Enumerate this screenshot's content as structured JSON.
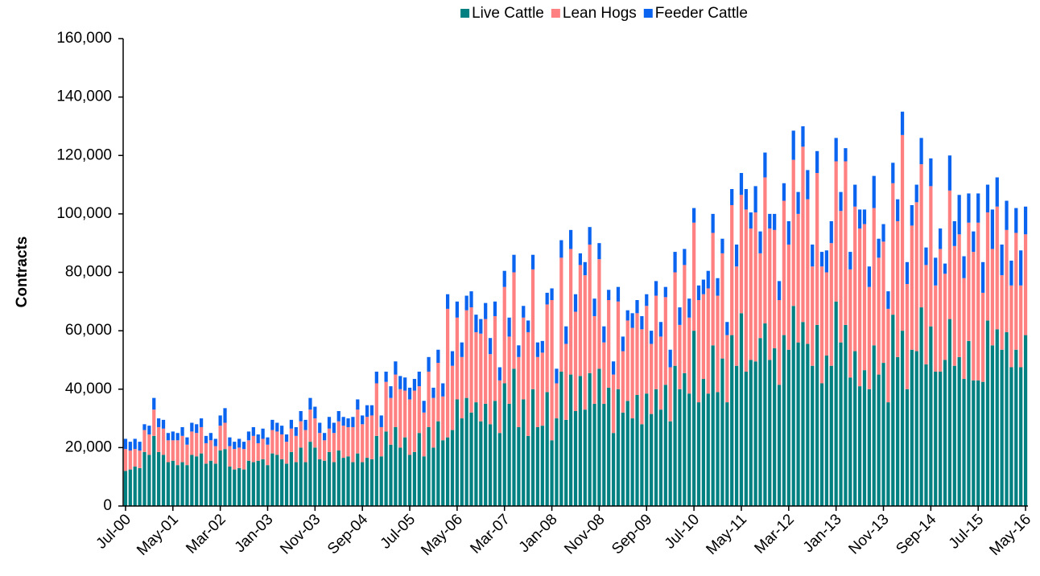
{
  "chart_data": {
    "type": "stacked_bar",
    "y_label": "Contracts",
    "categories": [
      "Jul-00",
      null,
      null,
      null,
      null,
      null,
      null,
      null,
      null,
      null,
      "May-01",
      null,
      null,
      null,
      null,
      null,
      null,
      null,
      null,
      null,
      "Mar-02",
      null,
      null,
      null,
      null,
      null,
      null,
      null,
      null,
      null,
      "Jan-03",
      null,
      null,
      null,
      null,
      null,
      null,
      null,
      null,
      null,
      "Nov-03",
      null,
      null,
      null,
      null,
      null,
      null,
      null,
      null,
      null,
      "Sep-04",
      null,
      null,
      null,
      null,
      null,
      null,
      null,
      null,
      null,
      "Jul-05",
      null,
      null,
      null,
      null,
      null,
      null,
      null,
      null,
      null,
      "May-06",
      null,
      null,
      null,
      null,
      null,
      null,
      null,
      null,
      null,
      "Mar-07",
      null,
      null,
      null,
      null,
      null,
      null,
      null,
      null,
      null,
      "Jan-08",
      null,
      null,
      null,
      null,
      null,
      null,
      null,
      null,
      null,
      "Nov-08",
      null,
      null,
      null,
      null,
      null,
      null,
      null,
      null,
      null,
      "Sep-09",
      null,
      null,
      null,
      null,
      null,
      null,
      null,
      null,
      null,
      "Jul-10",
      null,
      null,
      null,
      null,
      null,
      null,
      null,
      null,
      null,
      "May-11",
      null,
      null,
      null,
      null,
      null,
      null,
      null,
      null,
      null,
      "Mar-12",
      null,
      null,
      null,
      null,
      null,
      null,
      null,
      null,
      null,
      "Jan-13",
      null,
      null,
      null,
      null,
      null,
      null,
      null,
      null,
      null,
      "Nov-13",
      null,
      null,
      null,
      null,
      null,
      null,
      null,
      null,
      null,
      "Sep-14",
      null,
      null,
      null,
      null,
      null,
      null,
      null,
      null,
      null,
      "Jul-15",
      null,
      null,
      null,
      null,
      null,
      null,
      null,
      null,
      null,
      "May-16"
    ],
    "series": [
      {
        "name": "Live Cattle",
        "color": "#008080",
        "values": [
          12000,
          12500,
          13500,
          13000,
          18500,
          17500,
          24000,
          18500,
          17500,
          15000,
          15500,
          14000,
          15000,
          14000,
          17500,
          17000,
          18000,
          14500,
          15500,
          14500,
          19000,
          19500,
          13500,
          12500,
          13000,
          12500,
          15500,
          15000,
          15500,
          16000,
          14000,
          18000,
          17500,
          16000,
          14500,
          18500,
          15000,
          20000,
          15000,
          22000,
          20000,
          16000,
          15500,
          18500,
          15000,
          19000,
          16500,
          17000,
          15000,
          18000,
          15000,
          16500,
          16000,
          24000,
          17000,
          25500,
          21000,
          27000,
          20000,
          23500,
          17500,
          18500,
          25000,
          17000,
          27000,
          20000,
          29000,
          22500,
          23500,
          26000,
          36500,
          30000,
          37000,
          32000,
          35500,
          29000,
          35000,
          28000,
          36000,
          25000,
          42000,
          35000,
          47000,
          27000,
          36500,
          24000,
          40000,
          27000,
          27500,
          39000,
          22500,
          30000,
          46000,
          29500,
          45000,
          32500,
          44500,
          33000,
          45500,
          35000,
          47000,
          35000,
          40500,
          25000,
          40000,
          32000,
          36000,
          30000,
          38000,
          28000,
          38500,
          31500,
          40000,
          33000,
          41500,
          29000,
          48000,
          40000,
          45500,
          38500,
          60000,
          35500,
          43500,
          38500,
          55000,
          39000,
          50500,
          35500,
          58500,
          48000,
          66000,
          46000,
          50000,
          49500,
          57500,
          62500,
          50000,
          54000,
          41500,
          58500,
          53500,
          68500,
          56000,
          63000,
          55500,
          48000,
          62000,
          42000,
          51500,
          48000,
          70000,
          56000,
          62000,
          44000,
          53000,
          41000,
          46500,
          40000,
          55000,
          45000,
          49000,
          35500,
          65500,
          51000,
          60000,
          40000,
          53500,
          53000,
          68000,
          48500,
          61500,
          46000,
          46000,
          50000,
          64000,
          48000,
          51000,
          43500,
          56500,
          43000,
          43000,
          42500,
          63500,
          55000,
          60500,
          53500,
          59500,
          47500,
          53500,
          47500,
          58500
        ]
      },
      {
        "name": "Lean Hogs",
        "color": "#ff8080",
        "values": [
          7500,
          6500,
          6000,
          6000,
          7500,
          7000,
          9000,
          8500,
          9000,
          7500,
          7000,
          8500,
          9000,
          7000,
          8000,
          8000,
          9000,
          7000,
          7000,
          6000,
          8500,
          9000,
          7000,
          7000,
          7000,
          7000,
          7000,
          9000,
          6000,
          7000,
          7000,
          8000,
          8000,
          8500,
          7500,
          8000,
          9000,
          9000,
          11000,
          11000,
          10000,
          9000,
          7000,
          8000,
          10000,
          10000,
          11000,
          10000,
          12000,
          15000,
          13000,
          14000,
          15000,
          18000,
          10000,
          17000,
          16000,
          18000,
          20000,
          16000,
          19000,
          21000,
          16000,
          15000,
          19000,
          17000,
          20000,
          15000,
          44000,
          22000,
          28000,
          21000,
          30000,
          36000,
          24000,
          30000,
          29000,
          24000,
          29000,
          18000,
          33000,
          23000,
          33000,
          24000,
          28000,
          35500,
          41000,
          24000,
          25000,
          30000,
          48000,
          12000,
          39000,
          26000,
          43000,
          34000,
          38000,
          46000,
          44000,
          30000,
          37500,
          21000,
          30000,
          20000,
          30000,
          21000,
          27500,
          31000,
          28000,
          32500,
          30000,
          24000,
          32000,
          25000,
          30000,
          18500,
          32000,
          22000,
          37000,
          26000,
          37000,
          35000,
          29000,
          36000,
          38500,
          33000,
          36000,
          23000,
          44500,
          34000,
          40500,
          55500,
          45000,
          51000,
          29000,
          50000,
          45000,
          40500,
          29000,
          46000,
          36000,
          50000,
          44000,
          60000,
          49500,
          34000,
          52000,
          40000,
          28500,
          42000,
          48000,
          45000,
          56000,
          37000,
          49500,
          54000,
          50000,
          35000,
          47000,
          40000,
          41500,
          32000,
          45000,
          46500,
          67000,
          36000,
          42500,
          51000,
          49000,
          34000,
          48000,
          29500,
          42000,
          29500,
          44000,
          41000,
          42000,
          34500,
          40500,
          44000,
          54000,
          30500,
          37000,
          33000,
          42000,
          25500,
          35000,
          28000,
          40000,
          28000,
          34500
        ]
      },
      {
        "name": "Feeder Cattle",
        "color": "#0a64f0",
        "values": [
          3500,
          3000,
          3500,
          3000,
          2000,
          3000,
          4000,
          3000,
          3000,
          2500,
          3000,
          2500,
          3000,
          2500,
          3000,
          3000,
          3000,
          2500,
          2500,
          2500,
          3500,
          5000,
          3000,
          2500,
          3000,
          2500,
          3000,
          3000,
          3000,
          3500,
          2500,
          3500,
          3000,
          3000,
          2500,
          3000,
          3000,
          3500,
          3500,
          4000,
          4000,
          3500,
          2500,
          4000,
          3500,
          3500,
          3000,
          3000,
          3500,
          3500,
          3000,
          4000,
          3500,
          4000,
          4000,
          3500,
          4000,
          4500,
          4500,
          4500,
          4000,
          4000,
          5000,
          4000,
          5000,
          3500,
          4500,
          4500,
          5000,
          5000,
          5500,
          5000,
          5000,
          5500,
          6000,
          5000,
          5500,
          5500,
          5000,
          4500,
          5500,
          6500,
          6000,
          4000,
          4000,
          4000,
          5000,
          5000,
          4000,
          4000,
          4000,
          5000,
          6000,
          6000,
          6500,
          6000,
          4000,
          4500,
          6000,
          6000,
          5500,
          5500,
          3500,
          4500,
          5000,
          5000,
          3500,
          5000,
          4500,
          4500,
          4000,
          4500,
          5000,
          5000,
          3500,
          6000,
          7000,
          6000,
          5500,
          6500,
          5000,
          5000,
          5000,
          6000,
          6500,
          6000,
          5000,
          4500,
          5500,
          7500,
          7500,
          7000,
          5500,
          9000,
          7500,
          8500,
          5000,
          5500,
          6500,
          6000,
          8000,
          10000,
          7500,
          7000,
          10000,
          7500,
          7500,
          5000,
          7500,
          7500,
          8000,
          6500,
          4500,
          6000,
          7500,
          6500,
          5000,
          7000,
          11000,
          6500,
          6000,
          6000,
          7000,
          7500,
          8000,
          7500,
          7000,
          6000,
          9000,
          6000,
          9500,
          9500,
          7000,
          3500,
          12000,
          8500,
          13500,
          7500,
          10000,
          7000,
          10000,
          10500,
          9500,
          13500,
          10000,
          10500,
          10000,
          8500,
          8500,
          12000,
          9500
        ]
      }
    ],
    "ylim": [
      0,
      160000
    ],
    "yticks": [
      0,
      {
        "value": 20000,
        "label": "20,000"
      },
      {
        "value": 40000,
        "label": "40,000"
      },
      {
        "value": 60000,
        "label": "60,000"
      },
      {
        "value": 80000,
        "label": "80,000"
      },
      {
        "value": 100000,
        "label": "100,000"
      },
      {
        "value": 120000,
        "label": "120,000"
      },
      {
        "value": 140000,
        "label": "140,000"
      },
      {
        "value": 160000,
        "label": "160,000"
      }
    ],
    "legend": "top"
  }
}
